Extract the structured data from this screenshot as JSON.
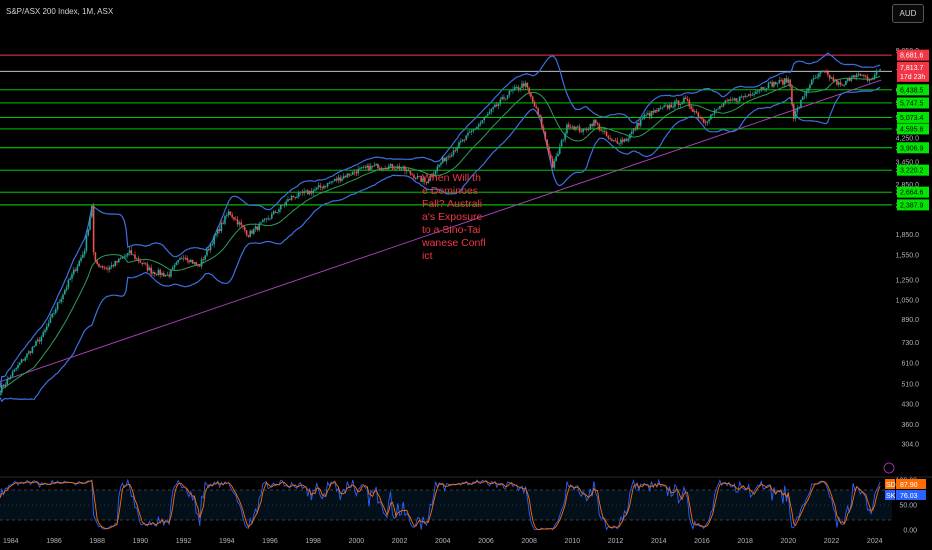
{
  "header": {
    "title": "S&P/ASX 200 Index, 1M, ASX",
    "currency": "AUD"
  },
  "annotation": "When Will the Dominoes Fall? Australia's Exposure to a Sino-Taiwanese Conflict",
  "colors": {
    "background": "#000000",
    "up": "#26a69a",
    "down": "#ef5350",
    "bollinger": "#3d6fe0",
    "basis": "#2e9e5a",
    "green_levels": "#00e600",
    "red_level": "#f23645",
    "trendline": "#b044c0",
    "stoch_k": "#2962ff",
    "stoch_d": "#ff6d00"
  },
  "chart_data": {
    "type": "candlestick",
    "scale": "log",
    "ylim": [
      300,
      10000
    ],
    "x_ticks": [
      "1984",
      "1986",
      "1988",
      "1990",
      "1992",
      "1994",
      "1996",
      "1998",
      "2000",
      "2002",
      "2004",
      "2006",
      "2008",
      "2010",
      "2012",
      "2014",
      "2016",
      "2018",
      "2020",
      "2022",
      "2024"
    ],
    "y_ticks": [
      "9,050.0",
      "7,551.0",
      "6,438.5",
      "5,747.5",
      "5,073.4",
      "4,595.6",
      "4,250.0",
      "3,906.9",
      "3,450.0",
      "3,220.2",
      "2,850.0",
      "2,664.6",
      "2,387.9",
      "1,850.0",
      "1,550.0",
      "1,250.0",
      "1,050.0",
      "890.0",
      "730.0",
      "610.0",
      "510.0",
      "430.0",
      "360.0",
      "304.0"
    ],
    "close_path": [
      {
        "x": 1983.5,
        "y": 485
      },
      {
        "x": 1984.5,
        "y": 620
      },
      {
        "x": 1985.5,
        "y": 780
      },
      {
        "x": 1986.5,
        "y": 1150
      },
      {
        "x": 1987.4,
        "y": 1600
      },
      {
        "x": 1987.75,
        "y": 2390
      },
      {
        "x": 1987.85,
        "y": 1450
      },
      {
        "x": 1988.5,
        "y": 1380
      },
      {
        "x": 1989.5,
        "y": 1580
      },
      {
        "x": 1990.5,
        "y": 1350
      },
      {
        "x": 1991.3,
        "y": 1300
      },
      {
        "x": 1992,
        "y": 1550
      },
      {
        "x": 1992.7,
        "y": 1400
      },
      {
        "x": 1993.5,
        "y": 1850
      },
      {
        "x": 1994.1,
        "y": 2250
      },
      {
        "x": 1995,
        "y": 1850
      },
      {
        "x": 1996,
        "y": 2150
      },
      {
        "x": 1997,
        "y": 2550
      },
      {
        "x": 1998,
        "y": 2700
      },
      {
        "x": 1999,
        "y": 2950
      },
      {
        "x": 2000,
        "y": 3200
      },
      {
        "x": 2001,
        "y": 3350
      },
      {
        "x": 2002,
        "y": 3300
      },
      {
        "x": 2003.2,
        "y": 2900
      },
      {
        "x": 2004,
        "y": 3500
      },
      {
        "x": 2005,
        "y": 4200
      },
      {
        "x": 2006,
        "y": 5100
      },
      {
        "x": 2007,
        "y": 6200
      },
      {
        "x": 2007.8,
        "y": 6800
      },
      {
        "x": 2008.5,
        "y": 5000
      },
      {
        "x": 2009.1,
        "y": 3300
      },
      {
        "x": 2009.8,
        "y": 4800
      },
      {
        "x": 2010.5,
        "y": 4500
      },
      {
        "x": 2011,
        "y": 4900
      },
      {
        "x": 2011.8,
        "y": 4100
      },
      {
        "x": 2012.5,
        "y": 4200
      },
      {
        "x": 2013.3,
        "y": 5100
      },
      {
        "x": 2014,
        "y": 5400
      },
      {
        "x": 2015.2,
        "y": 5900
      },
      {
        "x": 2016.1,
        "y": 4900
      },
      {
        "x": 2017,
        "y": 5700
      },
      {
        "x": 2018,
        "y": 6100
      },
      {
        "x": 2019,
        "y": 6700
      },
      {
        "x": 2020.05,
        "y": 7000
      },
      {
        "x": 2020.25,
        "y": 5100
      },
      {
        "x": 2021,
        "y": 6800
      },
      {
        "x": 2021.6,
        "y": 7500
      },
      {
        "x": 2022.5,
        "y": 6600
      },
      {
        "x": 2023,
        "y": 7400
      },
      {
        "x": 2023.8,
        "y": 7000
      },
      {
        "x": 2024.3,
        "y": 7813.7
      }
    ],
    "horizontal_levels": [
      {
        "value": 8681.6,
        "label": "8,681.6",
        "color": "red"
      },
      {
        "value": 7551.0,
        "label": "7,551.0",
        "color": "white"
      },
      {
        "value": 6438.5,
        "label": "6,438.5",
        "color": "green"
      },
      {
        "value": 5747.5,
        "label": "5,747.5",
        "color": "green"
      },
      {
        "value": 5073.4,
        "label": "5,073.4",
        "color": "green"
      },
      {
        "value": 4595.6,
        "label": "4,595.6",
        "color": "green"
      },
      {
        "value": 3906.9,
        "label": "3,906.9",
        "color": "green"
      },
      {
        "value": 3220.2,
        "label": "3,220.2",
        "color": "green"
      },
      {
        "value": 2664.6,
        "label": "2,664.6",
        "color": "green"
      },
      {
        "value": 2387.9,
        "label": "2,387.9",
        "color": "green"
      }
    ],
    "last_price": {
      "value": 7813.7,
      "label": "7,813.7",
      "countdown": "17d 23h"
    },
    "trendline": [
      {
        "x": 1983.5,
        "y": 520
      },
      {
        "x": 2024.3,
        "y": 7000
      }
    ],
    "oscillator": {
      "name": "Stochastic",
      "y_ticks": [
        "100.00",
        "50.00",
        "0.00"
      ],
      "bands": [
        80,
        20
      ],
      "d_label": "SD",
      "d_value": "87.90",
      "k_label": "SK",
      "k_value": "76.03"
    }
  }
}
